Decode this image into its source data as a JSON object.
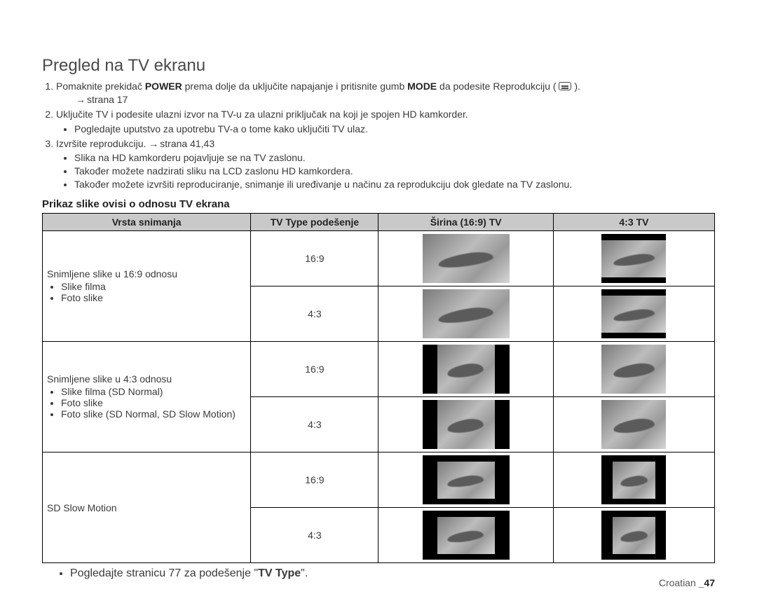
{
  "title": "Pregled na TV ekranu",
  "steps": {
    "s1_a": "Pomaknite prekidač ",
    "s1_power": "POWER",
    "s1_b": " prema dolje da uključite napajanje i pritisnite gumb ",
    "s1_mode": "MODE",
    "s1_c": " da podesite Reprodukciju ( ",
    "s1_d": " ).",
    "s1_pageref": "strana 17",
    "s2": "Uključite TV i podesite ulazni izvor na TV-u za ulazni priključak na koji je spojen HD kamkorder.",
    "s2_sub1": "Pogledajte uputstvo za upotrebu TV-a o tome kako uključiti TV ulaz.",
    "s3_a": "Izvršite reprodukciju. ",
    "s3_pageref": "strana 41,43",
    "s3_sub1": "Slika na HD kamkorderu pojavljuje se na TV zaslonu.",
    "s3_sub2": "Također možete nadzirati sliku na LCD zaslonu HD kamkordera.",
    "s3_sub3": "Također možete izvršiti reproduciranje, snimanje ili uređivanje u načinu za reprodukciju dok gledate na TV zaslonu."
  },
  "subtitle": "Prikaz slike ovisi o odnosu TV ekrana",
  "table": {
    "headers": {
      "c1": "Vrsta snimanja",
      "c2": "TV Type podešenje",
      "c3": "Širina (16:9) TV",
      "c4": "4:3 TV"
    },
    "ratios": {
      "r169": "16:9",
      "r43": "4:3"
    },
    "rowA": {
      "lead": "Snimljene slike u 16:9 odnosu",
      "b1": "Slike filma",
      "b2": "Foto slike"
    },
    "rowB": {
      "lead": "Snimljene slike u 4:3 odnosu",
      "b1": "Slike filma (SD Normal)",
      "b2": "Foto slike",
      "b3": "Foto slike (SD Normal, SD Slow Motion)"
    },
    "rowC": {
      "lead": "SD Slow Motion"
    }
  },
  "footnote_a": "Pogledajte stranicu 77 za podešenje \"",
  "footnote_b": "TV Type",
  "footnote_c": "\".",
  "footer_lang": "Croatian ",
  "footer_page": "_47",
  "colors": {
    "header_bg": "#c9c9c9",
    "border": "#000000",
    "text": "#3a3a3a"
  }
}
